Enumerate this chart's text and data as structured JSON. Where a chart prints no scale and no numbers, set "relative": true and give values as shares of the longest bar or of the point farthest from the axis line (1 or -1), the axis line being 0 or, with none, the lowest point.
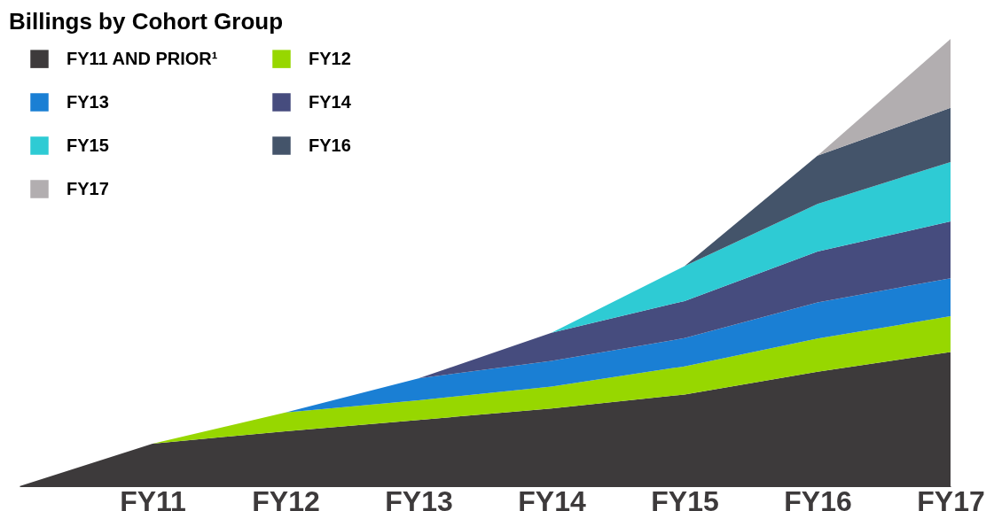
{
  "chart_data": {
    "type": "area",
    "title": "Billings by Cohort Group",
    "stacked": true,
    "relative": true,
    "legend": "top left",
    "categories": [
      null,
      "FY11",
      "FY12",
      "FY13",
      "FY14",
      "FY15",
      "FY16",
      "FY17"
    ],
    "series": [
      {
        "name": "FY11 AND PRIOR¹",
        "color": "#3d3a3b",
        "values": [
          0,
          0.095,
          0.123,
          0.148,
          0.174,
          0.205,
          0.256,
          0.3
        ]
      },
      {
        "name": "FY12",
        "color": "#97d700",
        "values": [
          null,
          0,
          0.042,
          0.044,
          0.049,
          0.063,
          0.074,
          0.08
        ]
      },
      {
        "name": "FY13",
        "color": "#1a7fd4",
        "values": [
          null,
          null,
          0,
          0.049,
          0.057,
          0.063,
          0.081,
          0.085
        ]
      },
      {
        "name": "FY14",
        "color": "#464c7e",
        "values": [
          null,
          null,
          null,
          0,
          0.063,
          0.083,
          0.114,
          0.127
        ]
      },
      {
        "name": "FY15",
        "color": "#2ecbd4",
        "values": [
          null,
          null,
          null,
          null,
          0,
          0.078,
          0.106,
          0.133
        ]
      },
      {
        "name": "FY16",
        "color": "#44546a",
        "values": [
          null,
          null,
          null,
          null,
          null,
          0,
          0.108,
          0.121
        ]
      },
      {
        "name": "FY17",
        "color": "#b2aeb0",
        "values": [
          null,
          null,
          null,
          null,
          null,
          null,
          0,
          0.154
        ]
      }
    ]
  }
}
